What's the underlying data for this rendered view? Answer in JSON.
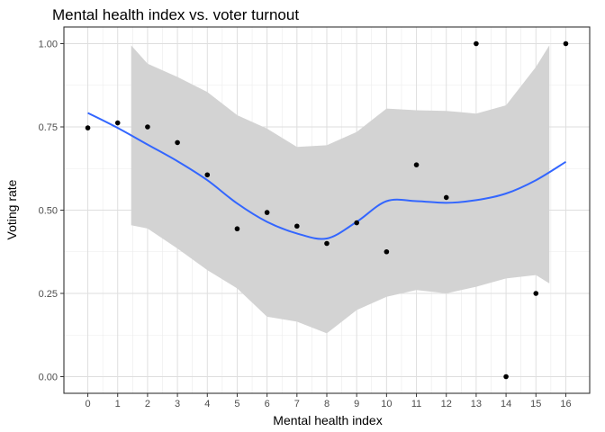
{
  "chart_data": {
    "type": "scatter",
    "title": "Mental health index vs. voter turnout",
    "xlabel": "Mental health index",
    "ylabel": "Voting rate",
    "xlim": [
      -0.8,
      16.8
    ],
    "ylim": [
      -0.05,
      1.05
    ],
    "x_ticks": [
      0,
      1,
      2,
      3,
      4,
      5,
      6,
      7,
      8,
      9,
      10,
      11,
      12,
      13,
      14,
      15,
      16
    ],
    "y_ticks": [
      0.0,
      0.25,
      0.5,
      0.75,
      1.0
    ],
    "y_tick_labels": [
      "0.00",
      "0.25",
      "0.50",
      "0.75",
      "1.00"
    ],
    "grid": true,
    "points": [
      {
        "x": 0,
        "y": 0.747
      },
      {
        "x": 1,
        "y": 0.762
      },
      {
        "x": 2,
        "y": 0.75
      },
      {
        "x": 3,
        "y": 0.703
      },
      {
        "x": 4,
        "y": 0.606
      },
      {
        "x": 5,
        "y": 0.444
      },
      {
        "x": 6,
        "y": 0.493
      },
      {
        "x": 7,
        "y": 0.452
      },
      {
        "x": 8,
        "y": 0.4
      },
      {
        "x": 9,
        "y": 0.462
      },
      {
        "x": 10,
        "y": 0.375
      },
      {
        "x": 11,
        "y": 0.636
      },
      {
        "x": 12,
        "y": 0.538
      },
      {
        "x": 13,
        "y": 1.0
      },
      {
        "x": 14,
        "y": 0.0
      },
      {
        "x": 15,
        "y": 0.25
      },
      {
        "x": 16,
        "y": 1.0
      }
    ],
    "smooth": {
      "color": "#3366FF",
      "x": [
        0,
        1,
        2,
        3,
        4,
        5,
        6,
        7,
        8,
        9,
        10,
        11,
        12,
        13,
        14,
        15,
        16
      ],
      "y": [
        0.792,
        0.747,
        0.697,
        0.647,
        0.59,
        0.52,
        0.465,
        0.43,
        0.415,
        0.465,
        0.527,
        0.527,
        0.522,
        0.53,
        0.55,
        0.59,
        0.645
      ]
    },
    "ribbon": {
      "color": "#D3D3D3",
      "x": [
        1.45,
        2,
        3,
        4,
        5,
        6,
        7,
        8,
        9,
        10,
        11,
        12,
        13,
        14,
        15,
        15.45
      ],
      "upper": [
        0.995,
        0.94,
        0.9,
        0.855,
        0.785,
        0.745,
        0.69,
        0.695,
        0.735,
        0.805,
        0.8,
        0.798,
        0.79,
        0.815,
        0.93,
        0.995
      ],
      "lower": [
        0.455,
        0.445,
        0.385,
        0.32,
        0.265,
        0.18,
        0.165,
        0.13,
        0.2,
        0.24,
        0.26,
        0.25,
        0.27,
        0.295,
        0.305,
        0.28
      ]
    }
  }
}
